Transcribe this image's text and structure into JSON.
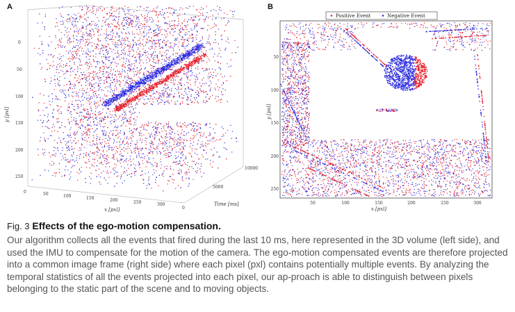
{
  "figure": {
    "panel_a": {
      "letter": "A",
      "y_axis_label": "y [pxl]",
      "x_axis_label": "x [pxl]",
      "z_axis_label": "Time [ms]",
      "y_ticks": [
        "0",
        "50",
        "100",
        "150",
        "200",
        "250"
      ],
      "x_ticks": [
        "0",
        "50",
        "100",
        "150",
        "200",
        "250",
        "300"
      ],
      "z_ticks": [
        "0",
        "5000",
        "10000"
      ]
    },
    "panel_b": {
      "letter": "B",
      "legend": {
        "positive": "Positive Event",
        "negative": "Negative Event"
      },
      "y_axis_label": "y [pxl]",
      "x_axis_label": "x [pxl]",
      "y_ticks": [
        "50",
        "100",
        "150",
        "200",
        "250"
      ],
      "x_ticks": [
        "50",
        "100",
        "150",
        "200",
        "250",
        "300"
      ]
    },
    "colors": {
      "positive": "#e8202a",
      "negative": "#2a2ae0"
    }
  },
  "caption": {
    "label": "Fig. 3",
    "title": "Effects of the ego-motion compensation.",
    "body": "Our algorithm collects all the events that fired during the last 10 ms, here represented in the 3D volume (left side), and used the IMU to compensate for the motion of the camera. The ego-motion compensated events are therefore projected into a common image frame (right side) where each pixel (pxl) contains potentially multiple events. By analyzing the temporal statistics of all the events projected into each pixel, our ap-proach is able to distinguish between pixels belonging to the static part of the scene and to moving objects."
  }
}
